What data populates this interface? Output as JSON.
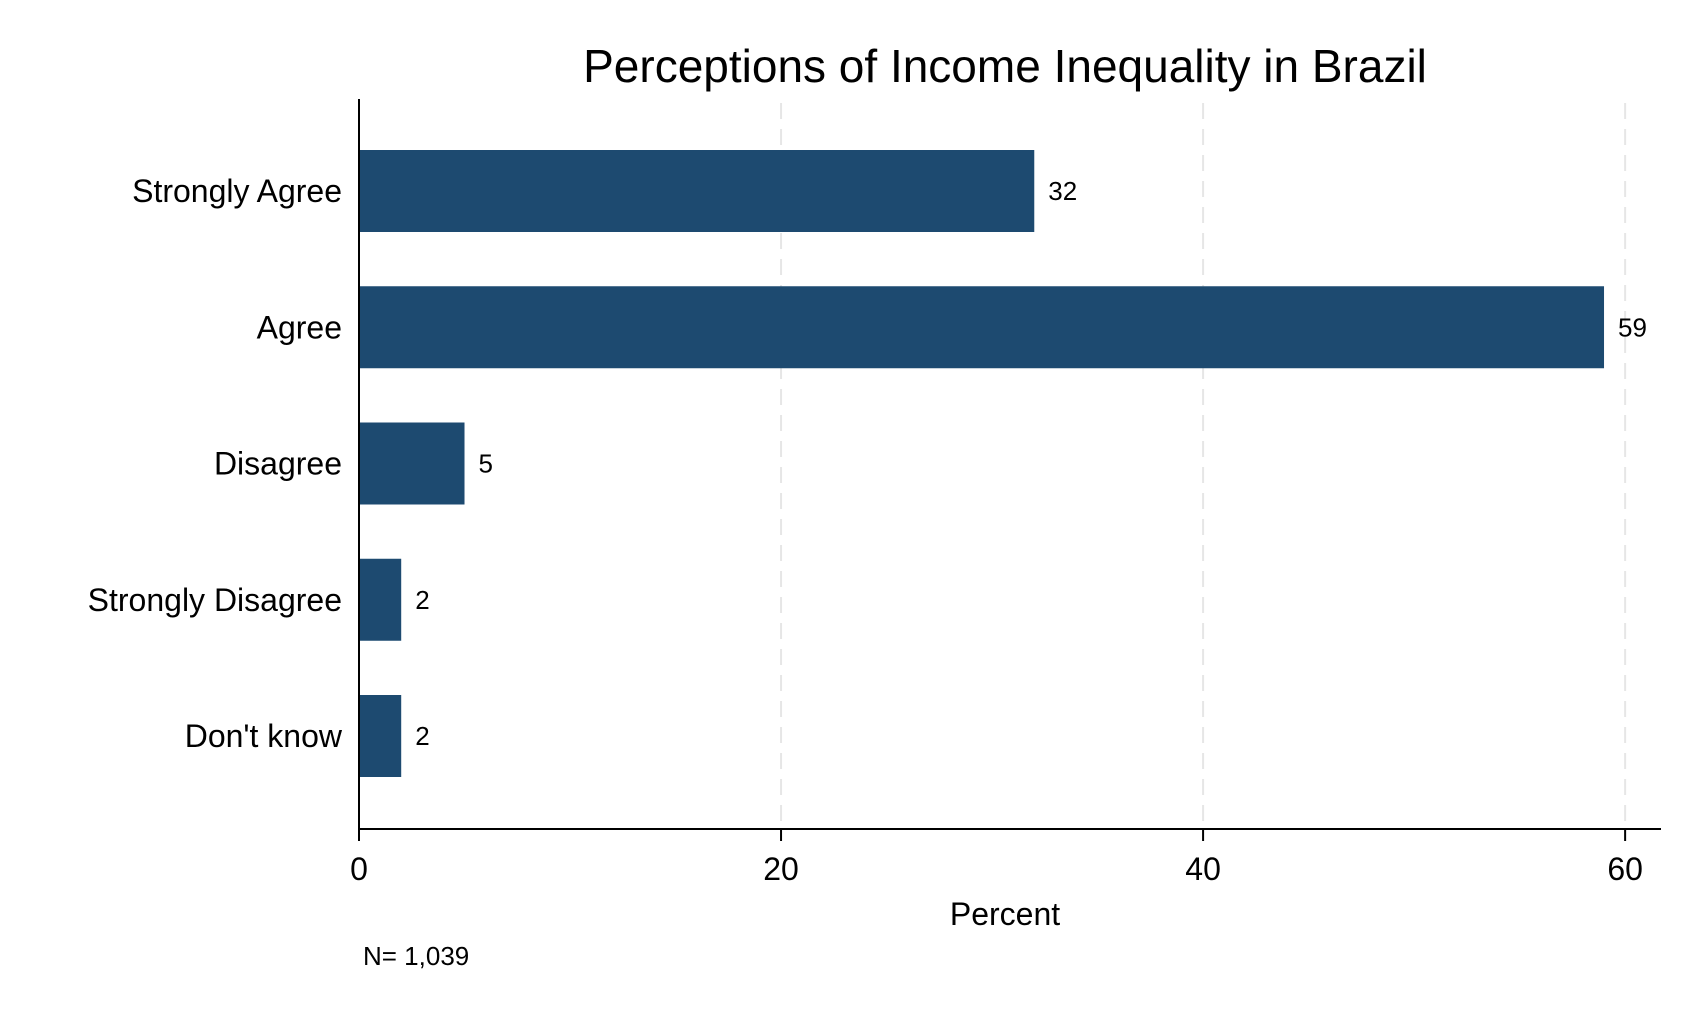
{
  "chart_data": {
    "type": "bar",
    "orientation": "horizontal",
    "title": "Perceptions of Income Inequality in Brazil",
    "xlabel": "Percent",
    "ylabel": "",
    "categories": [
      "Strongly Agree",
      "Agree",
      "Disagree",
      "Strongly Disagree",
      "Don't know"
    ],
    "values": [
      32,
      59,
      5,
      2,
      2
    ],
    "data_labels": [
      "32",
      "59",
      "5",
      "2",
      "2"
    ],
    "xlim": [
      0,
      61.7
    ],
    "xticks": [
      0,
      20,
      40,
      60
    ],
    "xtick_labels": [
      "0",
      "20",
      "40",
      "60"
    ],
    "grid": "vertical dashed",
    "bar_color": "#1d4a70",
    "grid_color": "#e6e6e6",
    "note": "N= 1,039"
  }
}
